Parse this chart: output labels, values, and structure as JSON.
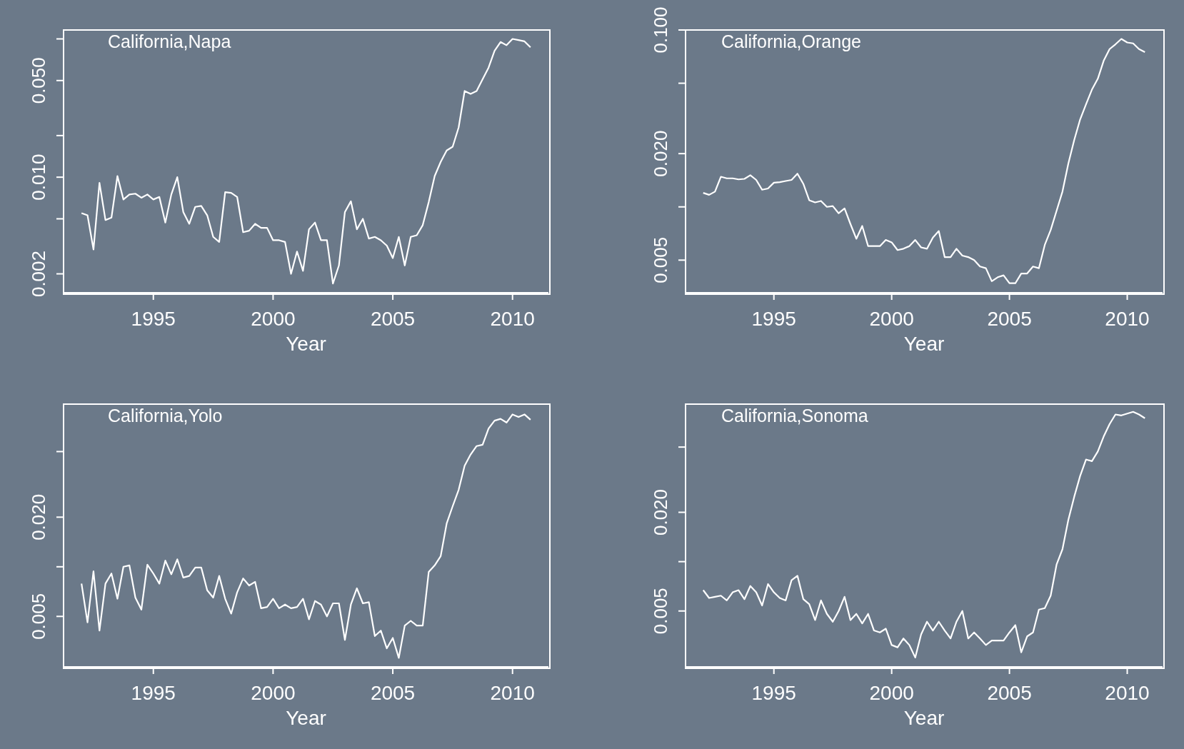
{
  "chart_data": [
    {
      "type": "line",
      "title": "California,Napa",
      "xlabel": "Year",
      "log": "y",
      "color": "#ffffff",
      "xlim": [
        1991.25,
        2011.5
      ],
      "xticks": [
        1995,
        2000,
        2005,
        2010
      ],
      "ylim": [
        0.00146,
        0.116
      ],
      "yticks": [
        {
          "value": 0.002,
          "label": "0.002"
        },
        {
          "value": 0.005,
          "label": null
        },
        {
          "value": 0.01,
          "label": "0.010"
        },
        {
          "value": 0.02,
          "label": null
        },
        {
          "value": 0.05,
          "label": "0.050"
        },
        {
          "value": 0.1,
          "label": null
        }
      ],
      "x": [
        1992,
        1992.25,
        1992.5,
        1992.75,
        1993,
        1993.25,
        1993.5,
        1993.75,
        1994,
        1994.25,
        1994.5,
        1994.75,
        1995,
        1995.25,
        1995.5,
        1995.75,
        1996,
        1996.25,
        1996.5,
        1996.75,
        1997,
        1997.25,
        1997.5,
        1997.75,
        1998,
        1998.25,
        1998.5,
        1998.75,
        1999,
        1999.25,
        1999.5,
        1999.75,
        2000,
        2000.25,
        2000.5,
        2000.75,
        2001,
        2001.25,
        2001.5,
        2001.75,
        2002,
        2002.25,
        2002.5,
        2002.75,
        2003,
        2003.25,
        2003.5,
        2003.75,
        2004,
        2004.25,
        2004.5,
        2004.75,
        2005,
        2005.25,
        2005.5,
        2005.75,
        2006,
        2006.25,
        2006.5,
        2006.75,
        2007,
        2007.25,
        2007.5,
        2007.75,
        2008,
        2008.25,
        2008.5,
        2008.75,
        2009,
        2009.25,
        2009.5,
        2009.75,
        2010,
        2010.25,
        2010.5,
        2010.75
      ],
      "values": [
        0.0055,
        0.0053,
        0.003,
        0.0091,
        0.0049,
        0.0051,
        0.0102,
        0.0069,
        0.0075,
        0.0076,
        0.0071,
        0.0075,
        0.0069,
        0.0072,
        0.0047,
        0.0075,
        0.01,
        0.0056,
        0.0046,
        0.0061,
        0.0062,
        0.0053,
        0.0037,
        0.0034,
        0.0078,
        0.0077,
        0.0072,
        0.004,
        0.0041,
        0.0046,
        0.0043,
        0.0043,
        0.0035,
        0.0035,
        0.0034,
        0.002,
        0.0029,
        0.0021,
        0.0042,
        0.0047,
        0.0035,
        0.0035,
        0.0017,
        0.0023,
        0.0056,
        0.0067,
        0.0042,
        0.005,
        0.0036,
        0.0037,
        0.0035,
        0.0032,
        0.0026,
        0.0037,
        0.0023,
        0.0037,
        0.0038,
        0.0045,
        0.0066,
        0.0102,
        0.0129,
        0.0156,
        0.0166,
        0.0229,
        0.042,
        0.04,
        0.042,
        0.051,
        0.062,
        0.082,
        0.095,
        0.09,
        0.1,
        0.098,
        0.096,
        0.087
      ]
    },
    {
      "type": "line",
      "title": "California,Orange",
      "xlabel": "Year",
      "log": "y",
      "color": "#ffffff",
      "xlim": [
        1991.25,
        2011.5
      ],
      "xticks": [
        1995,
        2000,
        2005,
        2010
      ],
      "ylim": [
        0.00327,
        0.1
      ],
      "yticks": [
        {
          "value": 0.005,
          "label": "0.005"
        },
        {
          "value": 0.01,
          "label": null
        },
        {
          "value": 0.02,
          "label": "0.020"
        },
        {
          "value": 0.05,
          "label": null
        },
        {
          "value": 0.1,
          "label": "0.100"
        }
      ],
      "x": [
        1992,
        1992.25,
        1992.5,
        1992.75,
        1993,
        1993.25,
        1993.5,
        1993.75,
        1994,
        1994.25,
        1994.5,
        1994.75,
        1995,
        1995.25,
        1995.5,
        1995.75,
        1996,
        1996.25,
        1996.5,
        1996.75,
        1997,
        1997.25,
        1997.5,
        1997.75,
        1998,
        1998.25,
        1998.5,
        1998.75,
        1999,
        1999.25,
        1999.5,
        1999.75,
        2000,
        2000.25,
        2000.5,
        2000.75,
        2001,
        2001.25,
        2001.5,
        2001.75,
        2002,
        2002.25,
        2002.5,
        2002.75,
        2003,
        2003.25,
        2003.5,
        2003.75,
        2004,
        2004.25,
        2004.5,
        2004.75,
        2005,
        2005.25,
        2005.5,
        2005.75,
        2006,
        2006.25,
        2006.5,
        2006.75,
        2007,
        2007.25,
        2007.5,
        2007.75,
        2008,
        2008.25,
        2008.5,
        2008.75,
        2009,
        2009.25,
        2009.5,
        2009.75,
        2010,
        2010.25,
        2010.5,
        2010.75
      ],
      "values": [
        0.012,
        0.0117,
        0.0122,
        0.0148,
        0.0145,
        0.0145,
        0.0143,
        0.0144,
        0.0151,
        0.0142,
        0.0125,
        0.0127,
        0.0137,
        0.0138,
        0.014,
        0.0142,
        0.0154,
        0.0135,
        0.0109,
        0.0106,
        0.0108,
        0.01,
        0.0101,
        0.0092,
        0.0098,
        0.008,
        0.0066,
        0.0078,
        0.006,
        0.006,
        0.006,
        0.0065,
        0.0063,
        0.0057,
        0.0058,
        0.006,
        0.0065,
        0.0059,
        0.0058,
        0.0067,
        0.0073,
        0.0052,
        0.0052,
        0.0058,
        0.0053,
        0.0052,
        0.005,
        0.0046,
        0.0045,
        0.0038,
        0.004,
        0.0041,
        0.0037,
        0.0037,
        0.0042,
        0.0042,
        0.0046,
        0.0045,
        0.0061,
        0.0074,
        0.0095,
        0.0122,
        0.0176,
        0.0239,
        0.0312,
        0.038,
        0.046,
        0.053,
        0.067,
        0.078,
        0.083,
        0.089,
        0.085,
        0.084,
        0.078,
        0.075
      ]
    },
    {
      "type": "line",
      "title": "California,Yolo",
      "xlabel": "Year",
      "log": "y",
      "color": "#ffffff",
      "xlim": [
        1991.25,
        2011.5
      ],
      "xticks": [
        1995,
        2000,
        2005,
        2010
      ],
      "ylim": [
        0.00247,
        0.097
      ],
      "yticks": [
        {
          "value": 0.005,
          "label": "0.005"
        },
        {
          "value": 0.01,
          "label": null
        },
        {
          "value": 0.02,
          "label": "0.020"
        },
        {
          "value": 0.05,
          "label": null
        }
      ],
      "x": [
        1992,
        1992.25,
        1992.5,
        1992.75,
        1993,
        1993.25,
        1993.5,
        1993.75,
        1994,
        1994.25,
        1994.5,
        1994.75,
        1995,
        1995.25,
        1995.5,
        1995.75,
        1996,
        1996.25,
        1996.5,
        1996.75,
        1997,
        1997.25,
        1997.5,
        1997.75,
        1998,
        1998.25,
        1998.5,
        1998.75,
        1999,
        1999.25,
        1999.5,
        1999.75,
        2000,
        2000.25,
        2000.5,
        2000.75,
        2001,
        2001.25,
        2001.5,
        2001.75,
        2002,
        2002.25,
        2002.5,
        2002.75,
        2003,
        2003.25,
        2003.5,
        2003.75,
        2004,
        2004.25,
        2004.5,
        2004.75,
        2005,
        2005.25,
        2005.5,
        2005.75,
        2006,
        2006.25,
        2006.5,
        2006.75,
        2007,
        2007.25,
        2007.5,
        2007.75,
        2008,
        2008.25,
        2008.5,
        2008.75,
        2009,
        2009.25,
        2009.5,
        2009.75,
        2010,
        2010.25,
        2010.5,
        2010.75
      ],
      "values": [
        0.0079,
        0.0046,
        0.0094,
        0.0041,
        0.0079,
        0.0091,
        0.0064,
        0.01,
        0.0102,
        0.0065,
        0.0055,
        0.0103,
        0.0091,
        0.0079,
        0.0109,
        0.009,
        0.0111,
        0.0086,
        0.0088,
        0.0099,
        0.0099,
        0.0072,
        0.0065,
        0.0088,
        0.0064,
        0.0052,
        0.007,
        0.0085,
        0.0077,
        0.0081,
        0.0056,
        0.0057,
        0.0064,
        0.0056,
        0.0059,
        0.0056,
        0.0057,
        0.0064,
        0.0048,
        0.0062,
        0.0059,
        0.005,
        0.006,
        0.006,
        0.0036,
        0.0059,
        0.0074,
        0.006,
        0.0061,
        0.0038,
        0.0041,
        0.0032,
        0.0037,
        0.0028,
        0.0044,
        0.0047,
        0.0044,
        0.0044,
        0.0093,
        0.0102,
        0.0116,
        0.0183,
        0.0233,
        0.0293,
        0.041,
        0.048,
        0.054,
        0.055,
        0.069,
        0.077,
        0.079,
        0.075,
        0.084,
        0.081,
        0.084,
        0.078
      ]
    },
    {
      "type": "line",
      "title": "California,Sonoma",
      "xlabel": "Year",
      "log": "y",
      "color": "#ffffff",
      "xlim": [
        1991.25,
        2011.5
      ],
      "xticks": [
        1995,
        2000,
        2005,
        2010
      ],
      "ylim": [
        0.00228,
        0.0914
      ],
      "yticks": [
        {
          "value": 0.005,
          "label": "0.005"
        },
        {
          "value": 0.01,
          "label": null
        },
        {
          "value": 0.02,
          "label": "0.020"
        },
        {
          "value": 0.05,
          "label": null
        }
      ],
      "x": [
        1992,
        1992.25,
        1992.5,
        1992.75,
        1993,
        1993.25,
        1993.5,
        1993.75,
        1994,
        1994.25,
        1994.5,
        1994.75,
        1995,
        1995.25,
        1995.5,
        1995.75,
        1996,
        1996.25,
        1996.5,
        1996.75,
        1997,
        1997.25,
        1997.5,
        1997.75,
        1998,
        1998.25,
        1998.5,
        1998.75,
        1999,
        1999.25,
        1999.5,
        1999.75,
        2000,
        2000.25,
        2000.5,
        2000.75,
        2001,
        2001.25,
        2001.5,
        2001.75,
        2002,
        2002.25,
        2002.5,
        2002.75,
        2003,
        2003.25,
        2003.5,
        2003.75,
        2004,
        2004.25,
        2004.5,
        2004.75,
        2005,
        2005.25,
        2005.5,
        2005.75,
        2006,
        2006.25,
        2006.5,
        2006.75,
        2007,
        2007.25,
        2007.5,
        2007.75,
        2008,
        2008.25,
        2008.5,
        2008.75,
        2009,
        2009.25,
        2009.5,
        2009.75,
        2010,
        2010.25,
        2010.5,
        2010.75
      ],
      "values": [
        0.0067,
        0.006,
        0.0061,
        0.0062,
        0.0058,
        0.0065,
        0.0067,
        0.0059,
        0.0071,
        0.0065,
        0.0054,
        0.0073,
        0.0065,
        0.006,
        0.0058,
        0.0077,
        0.0082,
        0.0059,
        0.0055,
        0.0044,
        0.0058,
        0.0048,
        0.0043,
        0.005,
        0.0061,
        0.0044,
        0.0048,
        0.0042,
        0.0048,
        0.0038,
        0.0037,
        0.0039,
        0.0031,
        0.003,
        0.0034,
        0.0031,
        0.0026,
        0.0036,
        0.0043,
        0.0038,
        0.0043,
        0.0038,
        0.0034,
        0.0043,
        0.005,
        0.0034,
        0.0037,
        0.0034,
        0.0031,
        0.0033,
        0.0033,
        0.0033,
        0.0037,
        0.0041,
        0.0028,
        0.0035,
        0.0037,
        0.0051,
        0.0052,
        0.0062,
        0.0096,
        0.0119,
        0.018,
        0.0249,
        0.0333,
        0.042,
        0.041,
        0.047,
        0.058,
        0.069,
        0.079,
        0.078,
        0.08,
        0.082,
        0.079,
        0.075
      ]
    }
  ]
}
